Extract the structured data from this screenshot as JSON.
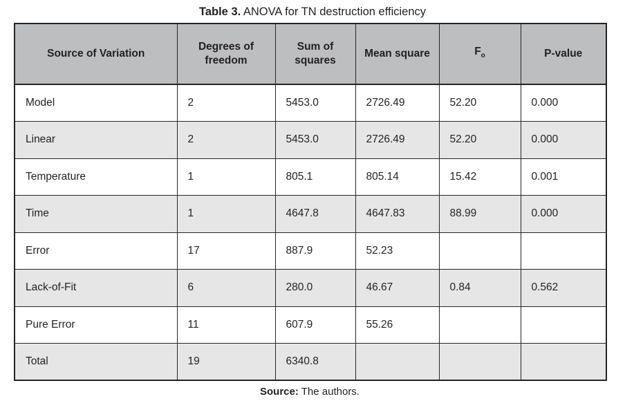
{
  "title": {
    "label": "Table 3.",
    "text": "ANOVA for TN destruction efficiency"
  },
  "footer": {
    "label": "Source:",
    "text": "The authors."
  },
  "colors": {
    "header_bg": "#bcbec0",
    "row_bg": "#ffffff",
    "row_alt_bg": "#e6e6e7",
    "border": "#262324",
    "text": "#231f20"
  },
  "chart_data": {
    "type": "table",
    "title": "Table 3. ANOVA for TN destruction efficiency",
    "columns": [
      "Source of Variation",
      "Degrees of freedom",
      "Sum of squares",
      "Mean square",
      "F",
      "P-value"
    ],
    "f_subscript": "o",
    "rows": [
      [
        "Model",
        "2",
        "5453.0",
        "2726.49",
        "52.20",
        "0.000"
      ],
      [
        "Linear",
        "2",
        "5453.0",
        "2726.49",
        "52.20",
        "0.000"
      ],
      [
        "Temperature",
        "1",
        "805.1",
        "805.14",
        "15.42",
        "0.001"
      ],
      [
        "Time",
        "1",
        "4647.8",
        "4647.83",
        "88.99",
        "0.000"
      ],
      [
        "Error",
        "17",
        "887.9",
        "52.23",
        "",
        ""
      ],
      [
        "Lack-of-Fit",
        "6",
        "280.0",
        "46.67",
        "0.84",
        "0.562"
      ],
      [
        "Pure Error",
        "11",
        "607.9",
        "55.26",
        "",
        ""
      ],
      [
        "Total",
        "19",
        "6340.8",
        "",
        "",
        ""
      ]
    ],
    "source_note": "Source: The authors."
  }
}
